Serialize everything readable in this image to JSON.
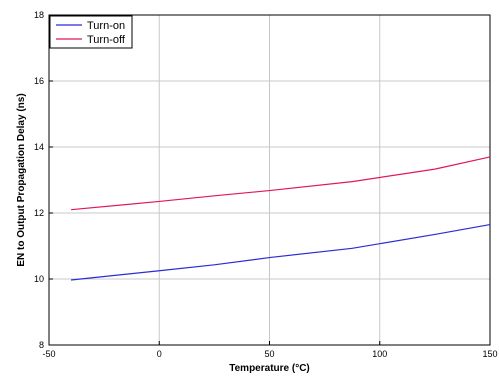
{
  "chart_data": {
    "type": "line",
    "xlabel": "Temperature (°C)",
    "ylabel": "EN to Output Propagation Delay (ns)",
    "xlim": [
      -50,
      150
    ],
    "ylim": [
      8,
      18
    ],
    "xticks": [
      -50,
      0,
      50,
      100,
      150
    ],
    "yticks": [
      8,
      10,
      12,
      14,
      16,
      18
    ],
    "grid": true,
    "legend_position": "top-left",
    "series": [
      {
        "name": "Turn-on",
        "color": "#2b2bd6",
        "x": [
          -40,
          0,
          25,
          50,
          87.5,
          125,
          150
        ],
        "y": [
          9.97,
          10.25,
          10.43,
          10.65,
          10.93,
          11.35,
          11.65
        ]
      },
      {
        "name": "Turn-off",
        "color": "#e0185a",
        "x": [
          -40,
          0,
          25,
          50,
          87.5,
          125,
          150
        ],
        "y": [
          12.1,
          12.35,
          12.52,
          12.68,
          12.95,
          13.33,
          13.7
        ]
      }
    ]
  }
}
